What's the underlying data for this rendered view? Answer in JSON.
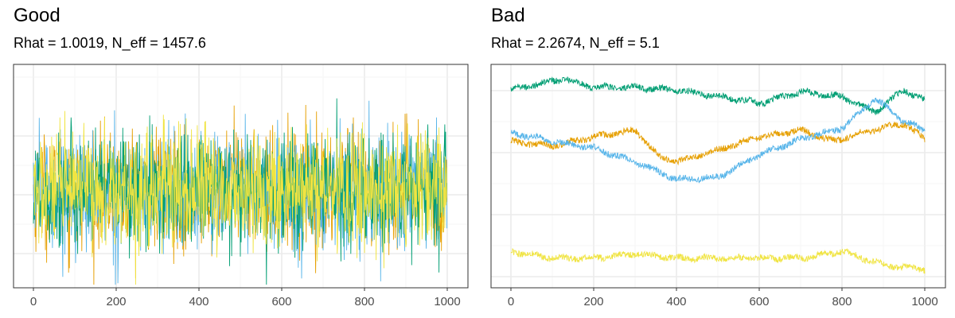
{
  "colors": [
    "#E69F00",
    "#56B4E9",
    "#009E73",
    "#F0E442"
  ],
  "panels": [
    {
      "title": "Good",
      "subtitle": "Rhat = 1.0019, N_eff = 1457.6"
    },
    {
      "title": "Bad",
      "subtitle": "Rhat = 2.2674, N_eff = 5.1"
    }
  ],
  "chart_data": [
    {
      "type": "line",
      "title": "Good",
      "subtitle": "Rhat = 1.0019, N_eff = 1457.6",
      "xlabel": "",
      "ylabel": "",
      "xlim": [
        0,
        1000
      ],
      "x_ticks": [
        "0",
        "200",
        "400",
        "600",
        "800",
        "1000"
      ],
      "y_ticks_labeled": false,
      "grid": true,
      "series_description": "4 overlapping well-mixed chains, white-noise-like traces centered on the same value",
      "series": [
        {
          "color": "#E69F00",
          "n": 1000,
          "mean": 0,
          "sd": 1
        },
        {
          "color": "#56B4E9",
          "n": 1000,
          "mean": 0,
          "sd": 1
        },
        {
          "color": "#009E73",
          "n": 1000,
          "mean": 0,
          "sd": 1
        },
        {
          "color": "#F0E442",
          "n": 1000,
          "mean": 0,
          "sd": 1
        }
      ]
    },
    {
      "type": "line",
      "title": "Bad",
      "subtitle": "Rhat = 2.2674, N_eff = 5.1",
      "xlabel": "",
      "ylabel": "",
      "xlim": [
        0,
        1000
      ],
      "x_ticks": [
        "0",
        "200",
        "400",
        "600",
        "800",
        "1000"
      ],
      "y_ticks_labeled": false,
      "grid": true,
      "series_description": "4 poorly mixing chains wandering at different levels",
      "series": [
        {
          "color": "#009E73",
          "x": [
            0,
            130,
            200,
            300,
            400,
            500,
            600,
            700,
            800,
            880,
            950,
            1000
          ],
          "y": [
            8.4,
            8.9,
            8.5,
            8.5,
            8.4,
            8.1,
            7.8,
            8.3,
            8.1,
            7.4,
            8.4,
            7.9
          ]
        },
        {
          "color": "#E69F00",
          "x": [
            0,
            100,
            200,
            300,
            360,
            400,
            500,
            600,
            700,
            780,
            850,
            950,
            1000
          ],
          "y": [
            6.1,
            5.9,
            6.3,
            6.6,
            5.4,
            5.2,
            5.7,
            6.3,
            6.6,
            6.1,
            6.5,
            6.9,
            6.2
          ]
        },
        {
          "color": "#56B4E9",
          "x": [
            0,
            100,
            200,
            300,
            400,
            500,
            600,
            700,
            800,
            880,
            950,
            1000
          ],
          "y": [
            6.5,
            6.1,
            5.8,
            5.2,
            4.4,
            4.5,
            5.5,
            6.2,
            6.7,
            8.0,
            7.0,
            6.6
          ]
        },
        {
          "color": "#F0E442",
          "x": [
            0,
            100,
            200,
            300,
            400,
            500,
            600,
            700,
            800,
            900,
            1000
          ],
          "y": [
            1.2,
            0.9,
            0.9,
            1.1,
            0.9,
            0.9,
            0.9,
            0.9,
            1.2,
            0.6,
            0.4
          ]
        }
      ]
    }
  ]
}
